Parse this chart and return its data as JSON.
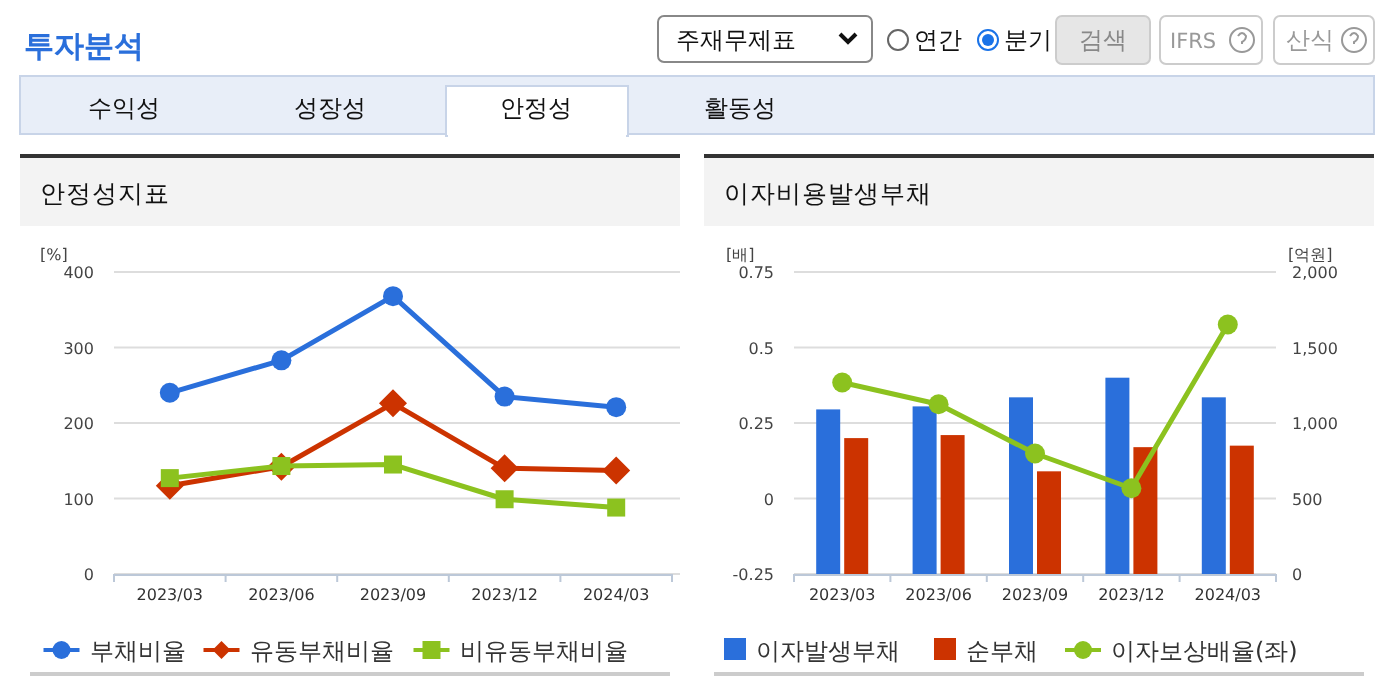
{
  "chart_data": [
    {
      "type": "other",
      "title": "투자분석",
      "annotations": [
        "주재무제표",
        "연간",
        "분기",
        "검색",
        "IFRS",
        "산식",
        "수익성",
        "성장성",
        "안정성",
        "활동성"
      ]
    },
    {
      "type": "line",
      "title": "안정성지표",
      "ylabel": "[%]",
      "categories": [
        "2023/03",
        "2023/06",
        "2023/09",
        "2023/12",
        "2024/03"
      ],
      "ylim": [
        0,
        400
      ],
      "yticks": [
        0,
        100,
        200,
        300,
        400
      ],
      "grid": "y",
      "legend": "bottom",
      "series": [
        {
          "name": "부채비율",
          "color": "#2a6fdb",
          "marker": "circle",
          "values": [
            240,
            283,
            368,
            235,
            221
          ]
        },
        {
          "name": "유동부채비율",
          "color": "#cc3300",
          "marker": "diamond",
          "values": [
            117,
            142,
            226,
            140,
            137
          ]
        },
        {
          "name": "비유동부채비율",
          "color": "#8cc21f",
          "marker": "square",
          "values": [
            127,
            143,
            145,
            99,
            88
          ]
        }
      ]
    },
    {
      "type": "bar",
      "title": "이자비용발생부채",
      "ylabel": "[배]",
      "y2label": "[억원]",
      "categories": [
        "2023/03",
        "2023/06",
        "2023/09",
        "2023/12",
        "2024/03"
      ],
      "ylim": [
        -0.25,
        0.75
      ],
      "yticks": [
        -0.25,
        0,
        0.25,
        0.5,
        0.75
      ],
      "y2lim": [
        0,
        2000
      ],
      "y2ticks": [
        0,
        500,
        {
          "value": 1000,
          "label": "1,000"
        },
        {
          "value": 1500,
          "label": "1,500"
        },
        {
          "value": 2000,
          "label": "2,000"
        }
      ],
      "grid": "y",
      "legend": "bottom",
      "series": [
        {
          "name": "이자발생부채",
          "color": "#2a6fdb",
          "axis": "y2",
          "values": [
            1090,
            1110,
            1170,
            1300,
            1170
          ]
        },
        {
          "name": "순부채",
          "color": "#cc3300",
          "axis": "y2",
          "values": [
            900,
            920,
            680,
            840,
            850
          ]
        },
        {
          "name": "이자보상배율(좌)",
          "type": "line",
          "marker": "circle",
          "color": "#8cc21f",
          "axis": "y",
          "values": [
            0.384,
            0.312,
            0.149,
            0.034,
            0.576
          ]
        }
      ]
    }
  ]
}
